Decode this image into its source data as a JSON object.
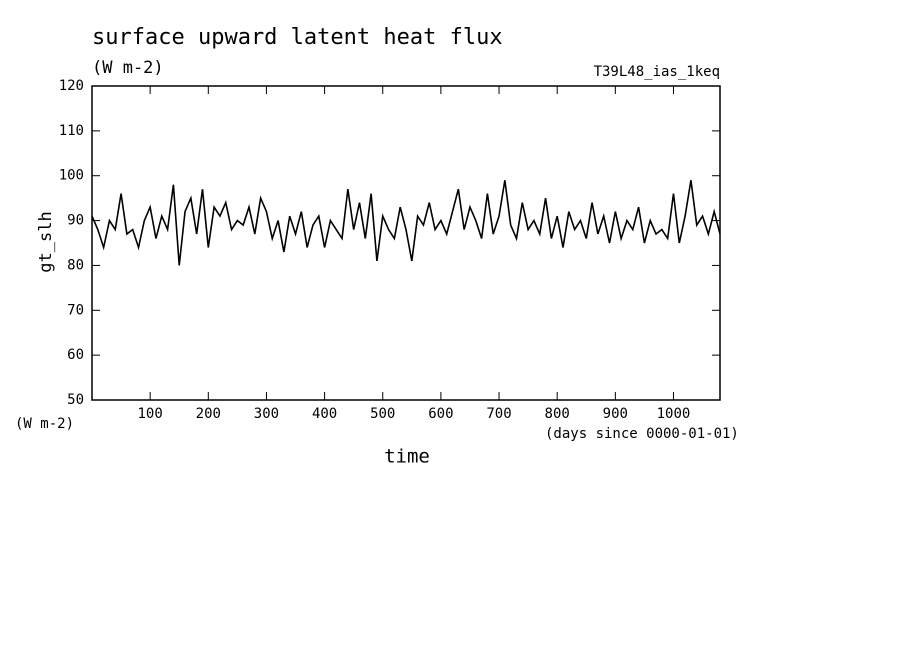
{
  "chart_data": {
    "type": "line",
    "title": "surface upward latent heat flux",
    "subtitle": "(W m-2)",
    "annotation": "T39L48_ias_1keq",
    "y_label": "gt_slh",
    "y_units": "(W m-2)",
    "x_units": "(days since 0000-01-01)",
    "x_label": "time",
    "color": "#000000",
    "x": [
      0,
      10,
      20,
      30,
      40,
      50,
      60,
      70,
      80,
      90,
      100,
      110,
      120,
      130,
      140,
      150,
      160,
      170,
      180,
      190,
      200,
      210,
      220,
      230,
      240,
      250,
      260,
      270,
      280,
      290,
      300,
      310,
      320,
      330,
      340,
      350,
      360,
      370,
      380,
      390,
      400,
      410,
      420,
      430,
      440,
      450,
      460,
      470,
      480,
      490,
      500,
      510,
      520,
      530,
      540,
      550,
      560,
      570,
      580,
      590,
      600,
      610,
      620,
      630,
      640,
      650,
      660,
      670,
      680,
      690,
      700,
      710,
      720,
      730,
      740,
      750,
      760,
      770,
      780,
      790,
      800,
      810,
      820,
      830,
      840,
      850,
      860,
      870,
      880,
      890,
      900,
      910,
      920,
      930,
      940,
      950,
      960,
      970,
      980,
      990,
      1000,
      1010,
      1020,
      1030,
      1040,
      1050,
      1060,
      1070,
      1080
    ],
    "values": [
      91,
      88,
      84,
      90,
      88,
      96,
      87,
      88,
      84,
      90,
      93,
      86,
      91,
      88,
      98,
      80,
      92,
      95,
      87,
      97,
      84,
      93,
      91,
      94,
      88,
      90,
      89,
      93,
      87,
      95,
      92,
      86,
      90,
      83,
      91,
      87,
      92,
      84,
      89,
      91,
      84,
      90,
      88,
      86,
      97,
      88,
      94,
      86,
      96,
      81,
      91,
      88,
      86,
      93,
      88,
      81,
      91,
      89,
      94,
      88,
      90,
      87,
      92,
      97,
      88,
      93,
      90,
      86,
      96,
      87,
      91,
      99,
      89,
      86,
      94,
      88,
      90,
      87,
      95,
      86,
      91,
      84,
      92,
      88,
      90,
      86,
      94,
      87,
      91,
      85,
      92,
      86,
      90,
      88,
      93,
      85,
      90,
      87,
      88,
      86,
      96,
      85,
      91,
      99,
      89,
      91,
      87,
      92,
      87
    ],
    "xlim": [
      0,
      1080
    ],
    "ylim": [
      50,
      120
    ],
    "xticks": [
      100,
      200,
      300,
      400,
      500,
      600,
      700,
      800,
      900,
      1000
    ],
    "yticks": [
      50,
      60,
      70,
      80,
      90,
      100,
      110,
      120
    ]
  }
}
